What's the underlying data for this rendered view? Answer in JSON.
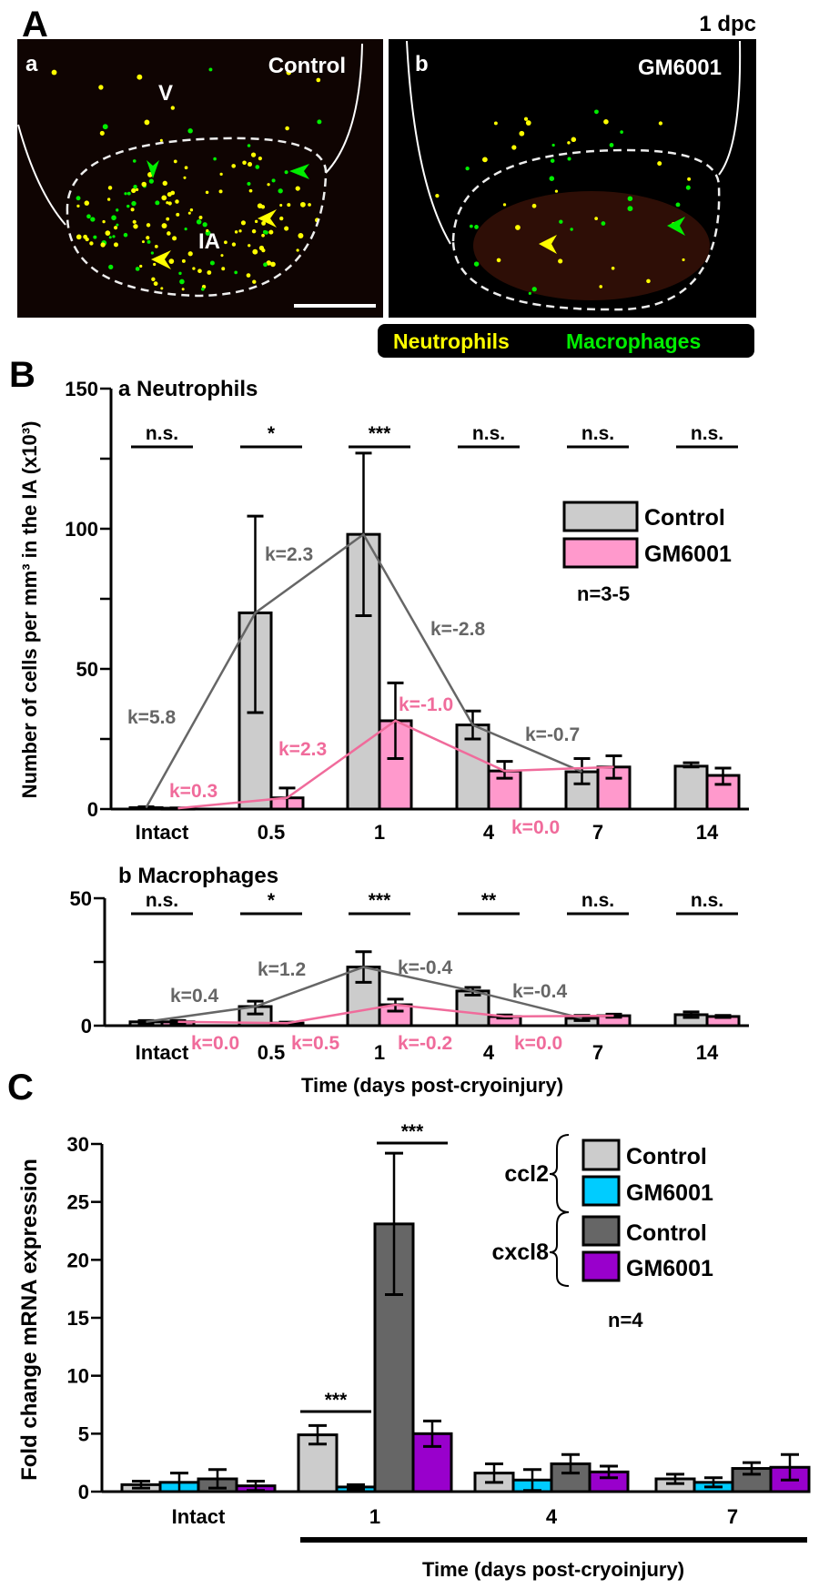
{
  "panel_a": {
    "letter": "A",
    "timepoint": "1 dpc",
    "left": {
      "letter": "a",
      "condition": "Control",
      "label_v": "V",
      "label_ia": "IA"
    },
    "right": {
      "letter": "b",
      "condition": "GM6001"
    },
    "legend": {
      "neutrophils": "Neutrophils",
      "macrophages": "Macrophages",
      "neutrophil_color": "#ffff00",
      "macrophage_color": "#00ee00"
    }
  },
  "panel_b": {
    "letter": "B",
    "ylabel": "Number of cells per mm³ in the IA (x10³)",
    "xlabel": "Time (days post-cryoinjury)",
    "legend": {
      "control": "Control",
      "gm6001": "GM6001",
      "n": "n=3-5"
    }
  },
  "panel_c": {
    "letter": "C",
    "ylabel": "Fold change mRNA expression",
    "xlabel": "Time (days post-cryoinjury)",
    "legend": {
      "ccl2": "ccl2",
      "cxcl8": "cxcl8",
      "control": "Control",
      "gm6001": "GM6001",
      "n": "n=4"
    }
  },
  "chart_data": [
    {
      "type": "bar",
      "title": "a Neutrophils",
      "categories": [
        "Intact",
        "0.5",
        "1",
        "4",
        "7",
        "14"
      ],
      "ylim": [
        0,
        150
      ],
      "yticks": [
        0,
        50,
        100,
        150
      ],
      "series": [
        {
          "name": "Control",
          "color": "#cccccc",
          "values": [
            0.5,
            70,
            98,
            30,
            13.3,
            15.3
          ],
          "err_low": [
            0.2,
            34.4,
            69,
            25,
            9,
            15
          ],
          "err_high": [
            0.8,
            104.5,
            127,
            35,
            18,
            16.5
          ]
        },
        {
          "name": "GM6001",
          "color": "#ff99cc",
          "values": [
            0.3,
            4,
            31.5,
            13.6,
            15,
            12
          ],
          "err_low": [
            0.2,
            0,
            18,
            11,
            11,
            8.8
          ],
          "err_high": [
            0.4,
            7.5,
            45,
            17,
            19,
            14.6
          ]
        }
      ],
      "significance": [
        "n.s.",
        "*",
        "***",
        "n.s.",
        "n.s.",
        "n.s."
      ],
      "slopes_control": [
        "k=5.8",
        "k=2.3",
        "k=-2.8",
        "k=-0.7"
      ],
      "slopes_gm6001": [
        "k=0.3",
        "k=2.3",
        "k=-1.0",
        "k=0.0"
      ]
    },
    {
      "type": "bar",
      "title": "b Macrophages",
      "categories": [
        "Intact",
        "0.5",
        "1",
        "4",
        "7",
        "14"
      ],
      "ylim": [
        0,
        50
      ],
      "yticks": [
        0,
        50
      ],
      "series": [
        {
          "name": "Control",
          "color": "#cccccc",
          "values": [
            1.5,
            7.5,
            23,
            13.6,
            2.9,
            4.3
          ],
          "err_low": [
            1,
            4.6,
            17,
            12,
            2,
            3.2
          ],
          "err_high": [
            2,
            9.6,
            29,
            15,
            4,
            5.4
          ]
        },
        {
          "name": "GM6001",
          "color": "#ff99cc",
          "values": [
            1.5,
            1,
            8.2,
            3.6,
            3.9,
            3.6
          ],
          "err_low": [
            1,
            0.6,
            5.7,
            3,
            3.3,
            3.2
          ],
          "err_high": [
            2,
            1.4,
            10.4,
            4.2,
            4.5,
            4
          ]
        }
      ],
      "significance": [
        "n.s.",
        "*",
        "***",
        "**",
        "n.s.",
        "n.s."
      ],
      "slopes_control": [
        "k=0.4",
        "k=1.2",
        "k=-0.4",
        "k=-0.4"
      ],
      "slopes_gm6001": [
        "k=0.0",
        "k=0.5",
        "k=-0.2",
        "k=0.0"
      ]
    },
    {
      "type": "bar",
      "title": "",
      "categories": [
        "Intact",
        "1",
        "4",
        "7"
      ],
      "ylim": [
        0,
        30
      ],
      "yticks": [
        0,
        5,
        10,
        15,
        20,
        25,
        30
      ],
      "series": [
        {
          "name": "ccl2 Control",
          "color": "#cccccc",
          "values": [
            0.6,
            4.9,
            1.6,
            1.1
          ],
          "err": [
            0.3,
            0.8,
            0.8,
            0.4
          ]
        },
        {
          "name": "ccl2 GM6001",
          "color": "#00ccff",
          "values": [
            0.8,
            0.4,
            1.0,
            0.8
          ],
          "err": [
            0.8,
            0.2,
            0.9,
            0.4
          ]
        },
        {
          "name": "cxcl8 Control",
          "color": "#666666",
          "values": [
            1.1,
            23.1,
            2.4,
            2.0
          ],
          "err": [
            0.8,
            6.1,
            0.8,
            0.5
          ]
        },
        {
          "name": "cxcl8 GM6001",
          "color": "#9900cc",
          "values": [
            0.5,
            5.0,
            1.7,
            2.1
          ],
          "err": [
            0.4,
            1.1,
            0.5,
            1.1
          ]
        }
      ],
      "significance": [
        {
          "group": "1",
          "pair": "ccl2",
          "label": "***"
        },
        {
          "group": "1",
          "pair": "cxcl8",
          "label": "***"
        }
      ]
    }
  ]
}
